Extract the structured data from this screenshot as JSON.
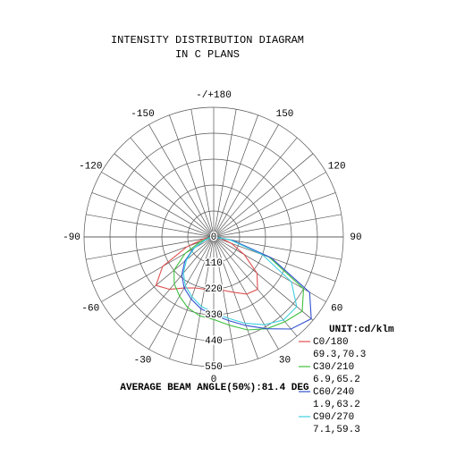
{
  "chart_data": {
    "type": "polar",
    "title": "INTENSITY DISTRIBUTION DIAGRAM",
    "subtitle": "IN C PLANS",
    "unit_label": "UNIT:cd/klm",
    "annotation": "AVERAGE BEAM ANGLE(50%):81.4 DEG",
    "x": [
      -90,
      -80,
      -70,
      -60,
      -50,
      -40,
      -30,
      -20,
      -10,
      0,
      10,
      20,
      30,
      40,
      50,
      60,
      70,
      80,
      90
    ],
    "ylim": [
      0,
      550
    ],
    "yticks": [
      0,
      110,
      220,
      330,
      440,
      550
    ],
    "angle_ticks": [
      0,
      30,
      60,
      90,
      120,
      150,
      {
        "value": 180,
        "label": "-/+180"
      },
      -150,
      -120,
      -90,
      -60,
      -30
    ],
    "series": [
      {
        "name": "C0/180",
        "beam_angles": "69.3,70.3",
        "color": "#e05050",
        "values": [
          0,
          40,
          120,
          250,
          320,
          290,
          250,
          230,
          225,
          225,
          230,
          250,
          280,
          290,
          240,
          150,
          80,
          30,
          0
        ]
      },
      {
        "name": "C30/210",
        "beam_angles": "6.9,65.2",
        "color": "#40c040",
        "values": [
          0,
          20,
          60,
          140,
          220,
          260,
          290,
          320,
          340,
          350,
          380,
          420,
          450,
          470,
          490,
          440,
          250,
          80,
          0
        ]
      },
      {
        "name": "C60/240",
        "beam_angles": "1.9,63.2",
        "color": "#3050d0",
        "values": [
          0,
          15,
          40,
          100,
          160,
          210,
          250,
          280,
          310,
          330,
          360,
          400,
          450,
          510,
          540,
          470,
          260,
          80,
          0
        ]
      },
      {
        "name": "C90/270",
        "beam_angles": "7.1,59.3",
        "color": "#40d0e0",
        "values": [
          0,
          15,
          40,
          95,
          150,
          200,
          240,
          270,
          300,
          320,
          350,
          390,
          430,
          460,
          460,
          380,
          220,
          70,
          0
        ]
      }
    ]
  }
}
